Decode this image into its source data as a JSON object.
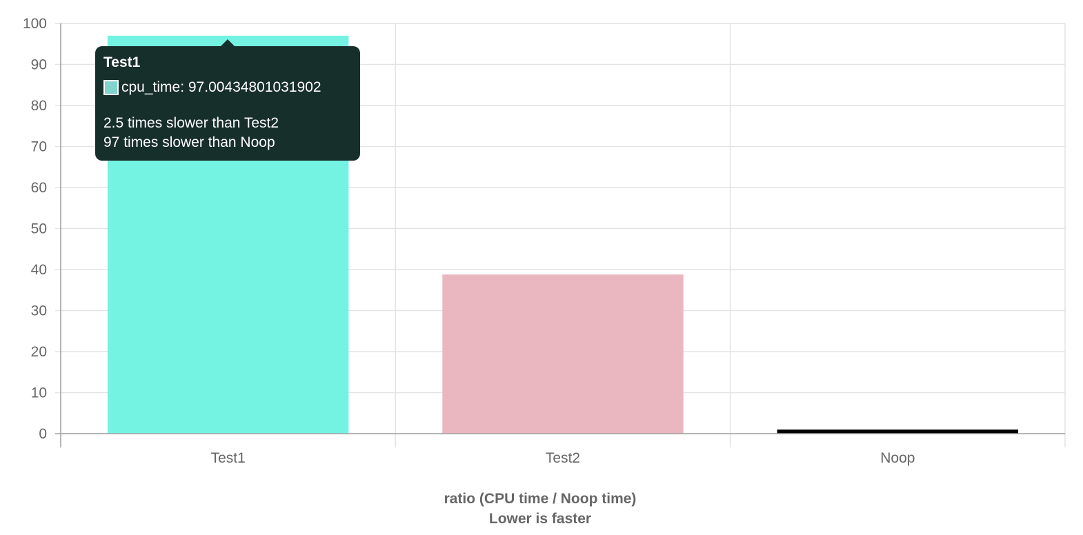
{
  "chart_data": {
    "type": "bar",
    "categories": [
      "Test1",
      "Test2",
      "Noop"
    ],
    "series": [
      {
        "name": "cpu_time",
        "values": [
          97.00434801031902,
          38.8,
          1
        ],
        "colors": [
          "#74f3e2",
          "#eab7c0",
          "#000000"
        ]
      }
    ],
    "ylim": [
      0,
      100
    ],
    "yticks": [
      0,
      10,
      20,
      30,
      40,
      50,
      60,
      70,
      80,
      90,
      100
    ],
    "xlabel": "ratio (CPU time / Noop time)",
    "xlabel_sub": "Lower is faster",
    "ylabel": "",
    "grid": true,
    "legend": "none"
  },
  "tooltip": {
    "title": "Test1",
    "label": "cpu_time: 97.00434801031902",
    "swatch_color": "#80d4cc",
    "footer": [
      "2.5 times slower than Test2",
      "97 times slower than Noop"
    ]
  }
}
